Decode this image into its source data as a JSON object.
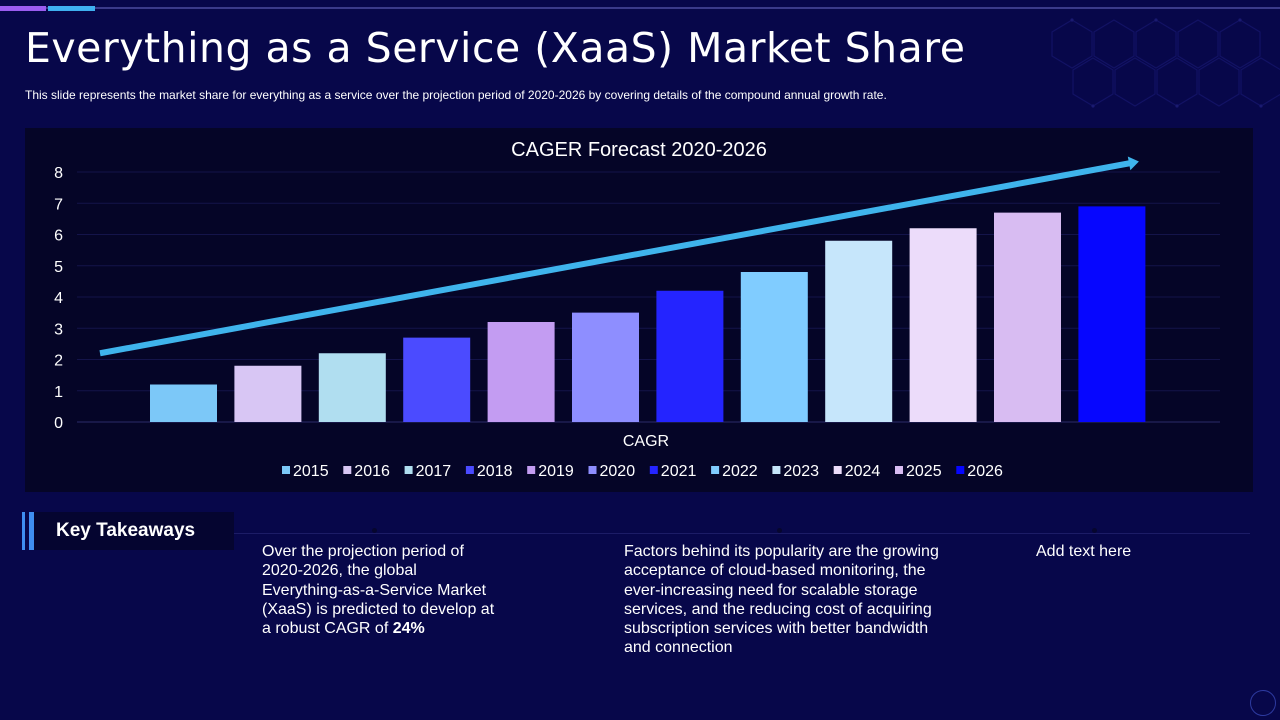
{
  "slide": {
    "title": "Everything as a Service (XaaS) Market Share",
    "subtitle": "This slide represents the market share for everything  as a service over the projection period of 2020-2026  by covering  details of the compound annual growth rate."
  },
  "chart_data": {
    "type": "bar",
    "title": "CAGER  Forecast 2020-2026",
    "xlabel": "CAGR",
    "ylabel": "",
    "ylim": [
      0,
      8
    ],
    "yticks": [
      0,
      1,
      2,
      3,
      4,
      5,
      6,
      7,
      8
    ],
    "grid": true,
    "legend_position": "bottom",
    "trend_arrow": {
      "start": 2.2,
      "end": 8.3
    },
    "categories": [
      "CAGR"
    ],
    "series": [
      {
        "name": "2015",
        "values": [
          1.2
        ],
        "color": "#7cc8f8"
      },
      {
        "name": "2016",
        "values": [
          1.8
        ],
        "color": "#d8c6f4"
      },
      {
        "name": "2017",
        "values": [
          2.2
        ],
        "color": "#b0def0"
      },
      {
        "name": "2018",
        "values": [
          2.7
        ],
        "color": "#4b4bff"
      },
      {
        "name": "2019",
        "values": [
          3.2
        ],
        "color": "#c39cf2"
      },
      {
        "name": "2020",
        "values": [
          3.5
        ],
        "color": "#8e8eff"
      },
      {
        "name": "2021",
        "values": [
          4.2
        ],
        "color": "#2424ff"
      },
      {
        "name": "2022",
        "values": [
          4.8
        ],
        "color": "#80ccff"
      },
      {
        "name": "2023",
        "values": [
          5.8
        ],
        "color": "#c6e6fb"
      },
      {
        "name": "2024",
        "values": [
          6.2
        ],
        "color": "#ecdcfa"
      },
      {
        "name": "2025",
        "values": [
          6.7
        ],
        "color": "#d8bcf2"
      },
      {
        "name": "2026",
        "values": [
          6.9
        ],
        "color": "#0606ff"
      }
    ]
  },
  "takeaways": {
    "label": "Key Takeaways",
    "col1_text": "Over the projection period of 2020-2026, the global Everything-as-a-Service  Market (XaaS) is predicted to develop at a robust CAGR of ",
    "col1_highlight": "24%",
    "col2_text": "Factors behind its popularity are the growing acceptance of cloud-based monitoring, the ever-increasing need for scalable storage services, and the reducing cost of acquiring subscription services with better bandwidth and connection",
    "col3_text": "Add text here"
  }
}
